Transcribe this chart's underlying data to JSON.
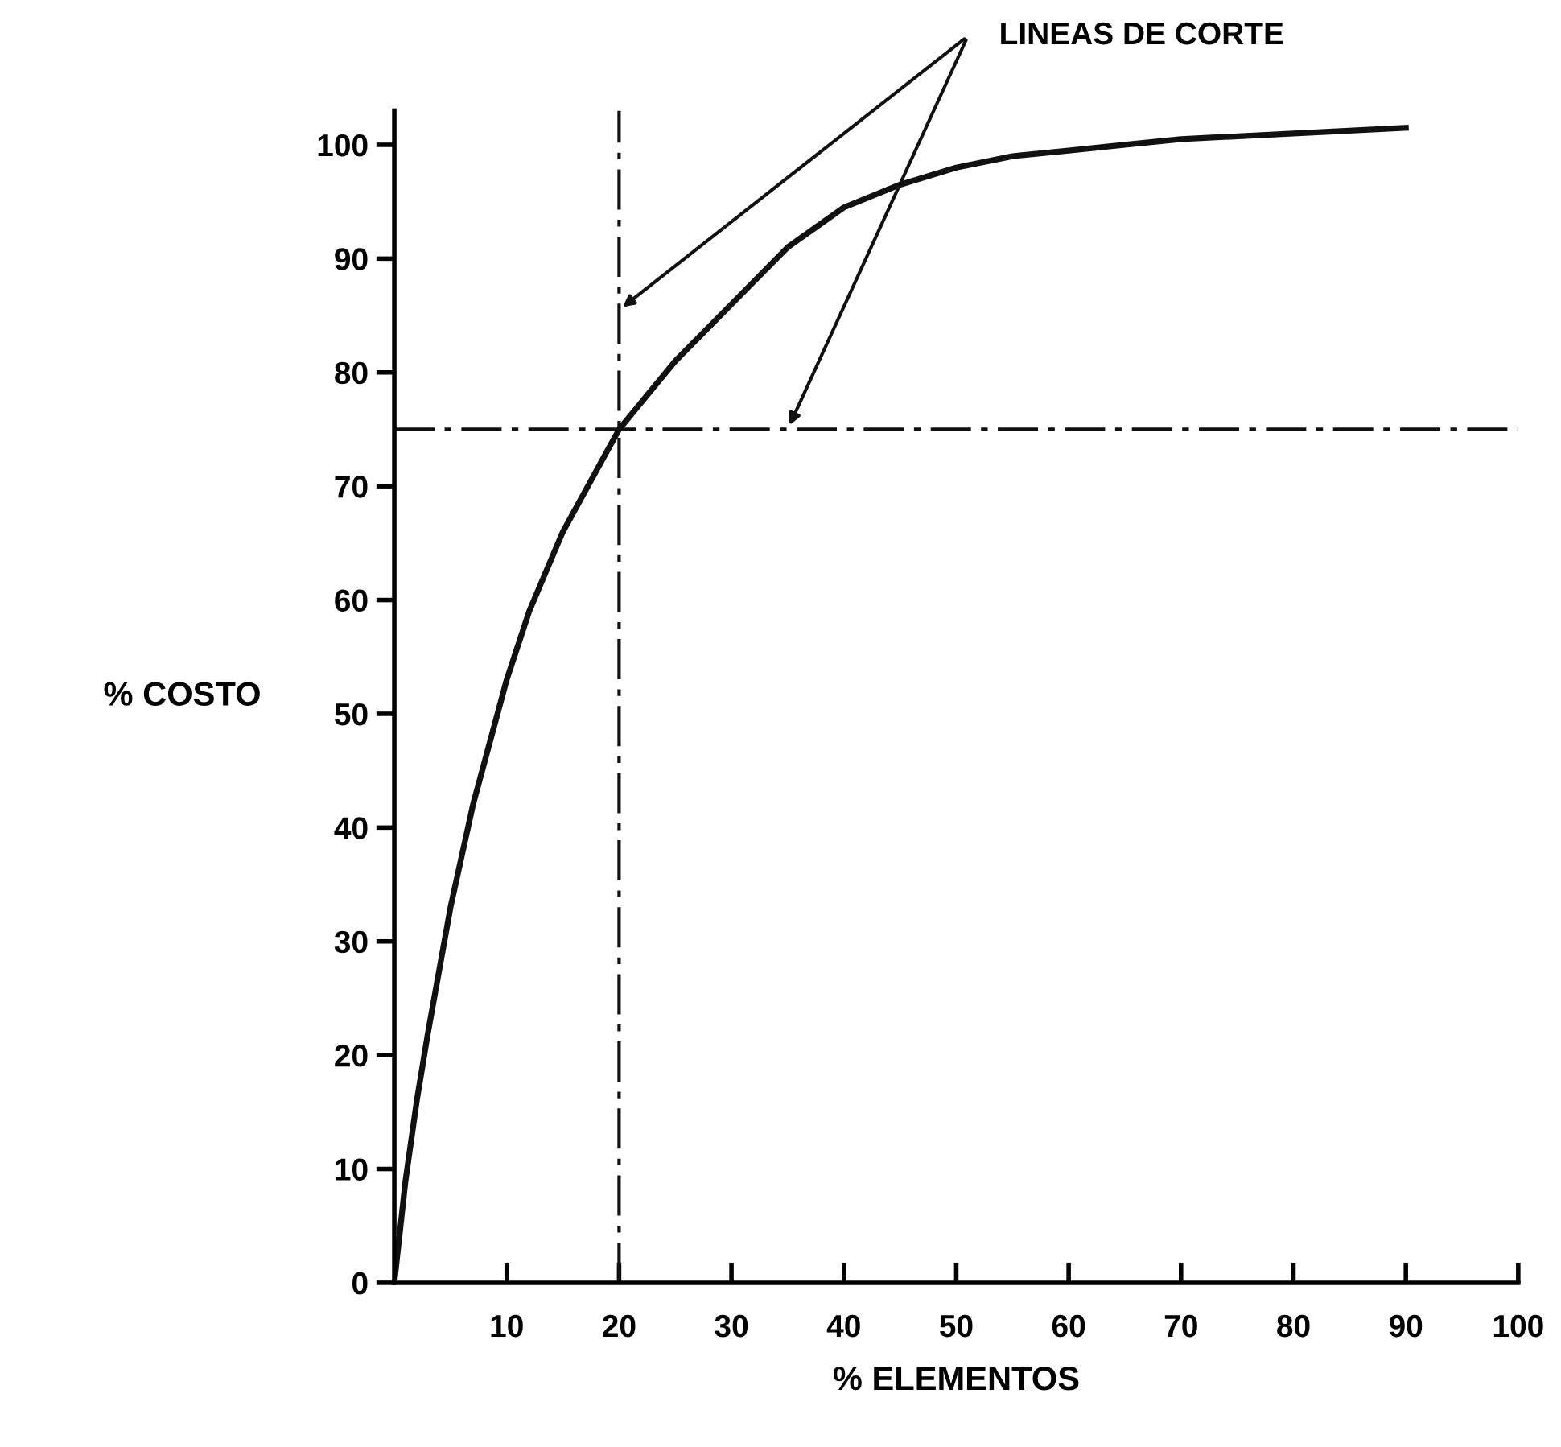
{
  "chart_data": {
    "type": "line",
    "xlabel": "% ELEMENTOS",
    "ylabel": "% COSTO",
    "annotations": [
      "LINEAS DE CORTE"
    ],
    "x": [
      0,
      1,
      2,
      3,
      5,
      7,
      10,
      12,
      15,
      20,
      25,
      30,
      35,
      40,
      45,
      50,
      55,
      60,
      65,
      70,
      80,
      90
    ],
    "series": [
      {
        "color": "#111111",
        "values": [
          0,
          9,
          16,
          22,
          33,
          42,
          53,
          59,
          66,
          75,
          81,
          86,
          91,
          94.5,
          96.5,
          98,
          99,
          99.5,
          100,
          100.5,
          101,
          101.5
        ]
      }
    ],
    "xlim": [
      0,
      100
    ],
    "ylim": [
      0,
      103
    ],
    "xticks": [
      10,
      20,
      30,
      40,
      50,
      60,
      70,
      80,
      90,
      100
    ],
    "yticks": [
      0,
      10,
      20,
      30,
      40,
      50,
      60,
      70,
      80,
      90,
      100
    ],
    "ref_lines": [
      {
        "axis": "x",
        "value": 20,
        "color": "#111111"
      },
      {
        "axis": "y",
        "value": 75,
        "color": "#111111"
      }
    ],
    "grid": false,
    "marker": "none",
    "line_style": "solid"
  }
}
